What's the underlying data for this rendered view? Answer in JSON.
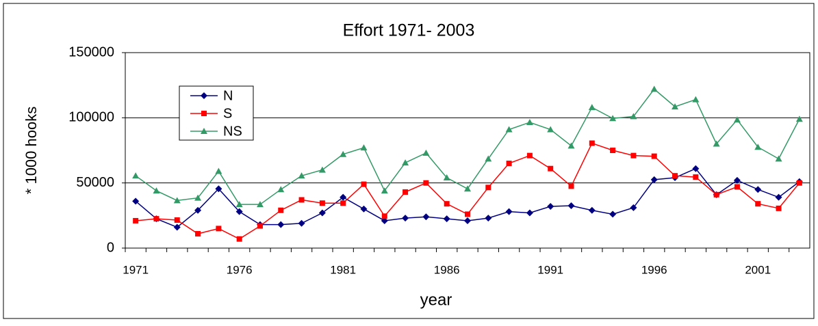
{
  "chart_data": {
    "type": "line",
    "title": "Effort 1971- 2003",
    "x_label": "year",
    "y_label": "* 1000 hooks",
    "x": [
      1971,
      1972,
      1973,
      1974,
      1975,
      1976,
      1977,
      1978,
      1979,
      1980,
      1981,
      1982,
      1983,
      1984,
      1985,
      1986,
      1987,
      1988,
      1989,
      1990,
      1991,
      1992,
      1993,
      1994,
      1995,
      1996,
      1997,
      1998,
      1999,
      2000,
      2001,
      2002,
      2003
    ],
    "xlim": [
      1970.5,
      2003.5
    ],
    "xticks": [
      1971,
      1976,
      1981,
      1986,
      1991,
      1996,
      2001
    ],
    "ylim": [
      0,
      150000
    ],
    "yticks": [
      0,
      50000,
      100000,
      150000
    ],
    "grid": true,
    "legend": "upper left",
    "series": [
      {
        "name": "N",
        "color": "#000080",
        "marker": "diamond",
        "values": [
          36000,
          22500,
          16000,
          29000,
          45500,
          28000,
          18000,
          18000,
          19000,
          27000,
          39000,
          30000,
          21000,
          23000,
          24000,
          22500,
          21000,
          23000,
          28000,
          27000,
          32000,
          32500,
          29000,
          26000,
          31000,
          52500,
          54000,
          61000,
          41000,
          52000,
          45000,
          39000,
          51000
        ]
      },
      {
        "name": "S",
        "color": "#ff0000",
        "marker": "square",
        "values": [
          21000,
          22500,
          21500,
          11000,
          15000,
          7000,
          17000,
          29000,
          37000,
          34500,
          34500,
          49000,
          24500,
          43000,
          50000,
          34000,
          26000,
          46500,
          65000,
          71000,
          61000,
          47500,
          80500,
          75000,
          71000,
          70500,
          55500,
          54500,
          41000,
          47000,
          34000,
          30500,
          50000
        ]
      },
      {
        "name": "NS",
        "color": "#339966",
        "marker": "triangle",
        "values": [
          55500,
          44000,
          36500,
          38500,
          59000,
          33500,
          33500,
          45000,
          55500,
          60000,
          72000,
          77000,
          44000,
          65500,
          73000,
          54000,
          45500,
          68500,
          91000,
          96500,
          91000,
          78500,
          108000,
          99500,
          101000,
          122000,
          108500,
          114000,
          80000,
          98500,
          77500,
          68500,
          99000
        ]
      }
    ]
  }
}
